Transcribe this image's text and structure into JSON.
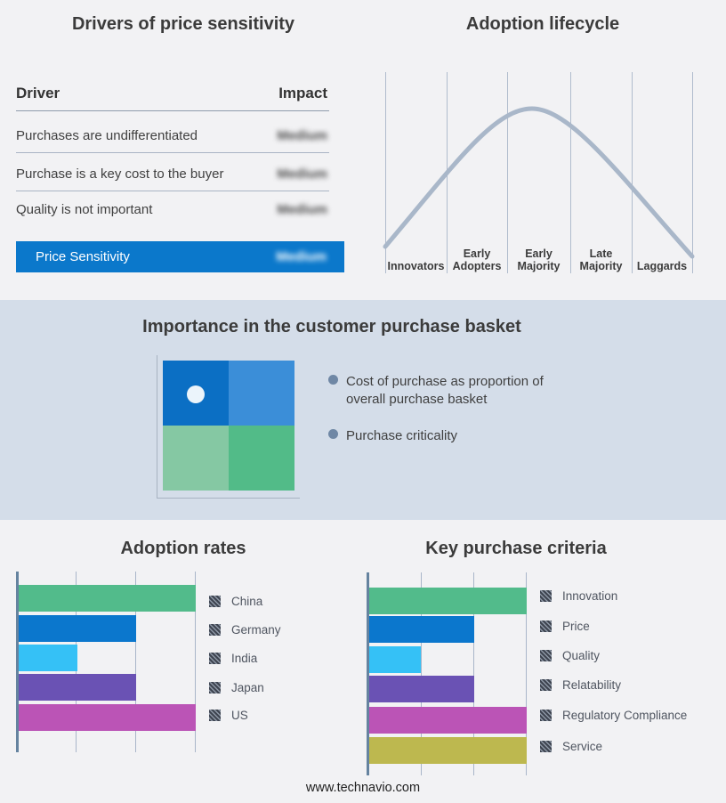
{
  "footer": {
    "text": "www.technavio.com"
  },
  "colors": {
    "page_bg": "#f2f2f4",
    "band_bg": "#d4dde9",
    "accent_blue": "#0b78cb",
    "curve": "#a9b7c9",
    "gridline": "#a9b6c9",
    "axis": "#65839f",
    "bullet": "#6f87a5",
    "title_text": "#3b3b3b"
  },
  "drivers": {
    "title": "Drivers of price sensitivity",
    "header": {
      "driver": "Driver",
      "impact": "Impact"
    },
    "rows": [
      {
        "driver": "Purchases are undifferentiated",
        "impact": "Medium",
        "impact_blurred": true
      },
      {
        "driver": "Purchase is a key cost to the buyer",
        "impact": "Medium",
        "impact_blurred": true
      },
      {
        "driver": "Quality is not important",
        "impact": "Medium",
        "impact_blurred": true
      }
    ],
    "summary_row": {
      "driver": "Price Sensitivity",
      "impact": "Medium",
      "impact_blurred": true
    }
  },
  "lifecycle": {
    "title": "Adoption lifecycle",
    "stages": [
      {
        "label": "Innovators"
      },
      {
        "label": "Early Adopters"
      },
      {
        "label": "Early Majority"
      },
      {
        "label": "Late Majority"
      },
      {
        "label": "Laggards"
      }
    ]
  },
  "basket": {
    "title": "Importance in the customer purchase basket",
    "bullets": [
      {
        "text": "Cost of purchase as proportion of overall purchase basket"
      },
      {
        "text": "Purchase criticality"
      }
    ],
    "quadrant": {
      "tl": "#0b6fc4",
      "tr": "#3b8ed8",
      "bl": "#85c8a3",
      "br": "#52bb88",
      "marker": "#ebf4fb"
    }
  },
  "adoption": {
    "title": "Adoption rates",
    "bars": [
      {
        "label": "China",
        "value": 3,
        "color": "#52bb8b"
      },
      {
        "label": "Germany",
        "value": 2,
        "color": "#0b77cd"
      },
      {
        "label": "India",
        "value": 1,
        "color": "#35c1f6"
      },
      {
        "label": "Japan",
        "value": 2,
        "color": "#6a52b4"
      },
      {
        "label": "US",
        "value": 3,
        "color": "#bb54b6"
      }
    ]
  },
  "criteria": {
    "title": "Key purchase criteria",
    "bars": [
      {
        "label": "Innovation",
        "value": 3,
        "color": "#52bb8b"
      },
      {
        "label": "Price",
        "value": 2,
        "color": "#0b77cd"
      },
      {
        "label": "Quality",
        "value": 1,
        "color": "#35c1f6"
      },
      {
        "label": "Relatability",
        "value": 2,
        "color": "#6a52b4"
      },
      {
        "label": "Regulatory Compliance",
        "value": 3,
        "color": "#bb54b6"
      },
      {
        "label": "Service",
        "value": 3,
        "color": "#bdb84f"
      }
    ]
  },
  "chart_data": [
    {
      "type": "table",
      "title": "Drivers of price sensitivity",
      "columns": [
        "Driver",
        "Impact"
      ],
      "rows": [
        [
          "Purchases are undifferentiated",
          "Medium"
        ],
        [
          "Purchase is a key cost to the buyer",
          "Medium"
        ],
        [
          "Quality is not important",
          "Medium"
        ],
        [
          "Price Sensitivity",
          "Medium"
        ]
      ],
      "note": "Impact values shown blurred in source image"
    },
    {
      "type": "line",
      "title": "Adoption lifecycle",
      "categories": [
        "Innovators",
        "Early Adopters",
        "Early Majority",
        "Late Majority",
        "Laggards"
      ],
      "curve_points_normalized": [
        [
          0.0,
          0.13
        ],
        [
          0.25,
          0.55
        ],
        [
          0.48,
          1.0
        ],
        [
          0.75,
          0.48
        ],
        [
          1.0,
          0.08
        ]
      ],
      "shape": "bell curve peaking in Early Majority",
      "grid": "vertical stage separators only",
      "legend_position": "none"
    },
    {
      "type": "bar",
      "title": "Adoption rates",
      "orientation": "horizontal",
      "categories": [
        "China",
        "Germany",
        "India",
        "Japan",
        "US"
      ],
      "values": [
        3,
        2,
        1,
        2,
        3
      ],
      "xlim": [
        0,
        3
      ],
      "xlabel": "",
      "ylabel": "",
      "note": "axis unlabeled; values estimated in gridline units",
      "legend_position": "right"
    },
    {
      "type": "bar",
      "title": "Key purchase criteria",
      "orientation": "horizontal",
      "categories": [
        "Innovation",
        "Price",
        "Quality",
        "Relatability",
        "Regulatory Compliance",
        "Service"
      ],
      "values": [
        3,
        2,
        1,
        2,
        3,
        3
      ],
      "xlim": [
        0,
        3
      ],
      "xlabel": "",
      "ylabel": "",
      "note": "axis unlabeled; values estimated in gridline units",
      "legend_position": "right"
    }
  ]
}
